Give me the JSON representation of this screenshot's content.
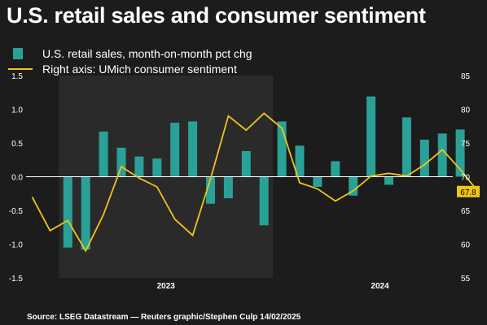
{
  "chart_data": {
    "type": "bar+line",
    "title": "U.S. retail sales and consumer sentiment",
    "source": "Source: LSEG Datastream — Reuters graphic/Stephen Culp 14/02/2025",
    "x_labels": [
      "2023",
      "2024"
    ],
    "left_axis": {
      "ylim": [
        -1.5,
        1.5
      ],
      "ticks": [
        "1.5",
        "1.0",
        "0.5",
        "0.0",
        "-0.5",
        "-1.0",
        "-1.5"
      ]
    },
    "right_axis": {
      "ylim": [
        55,
        85
      ],
      "ticks": [
        "85",
        "80",
        "75",
        "70",
        "65",
        "60",
        "55"
      ]
    },
    "months": [
      "2022-11",
      "2022-12",
      "2023-01",
      "2023-02",
      "2023-03",
      "2023-04",
      "2023-05",
      "2023-06",
      "2023-07",
      "2023-08",
      "2023-09",
      "2023-10",
      "2023-11",
      "2023-12",
      "2024-01",
      "2024-02",
      "2024-03",
      "2024-04",
      "2024-05",
      "2024-06",
      "2024-07",
      "2024-08",
      "2024-09",
      "2024-10",
      "2024-11",
      "2024-12",
      "2025-01"
    ],
    "series": [
      {
        "name": "U.S. retail sales, month-on-month pct chg",
        "type": "bar",
        "axis": "left",
        "color": "#2aa198",
        "values": [
          -1.05,
          -1.08,
          0.67,
          0.43,
          0.3,
          0.27,
          0.8,
          0.82,
          -0.4,
          -0.32,
          0.38,
          -0.72,
          0.82,
          0.46,
          -0.15,
          0.23,
          -0.28,
          1.19,
          -0.12,
          0.88,
          0.55,
          0.64,
          0.7,
          -0.89
        ],
        "bar_months": [
          "2023-01",
          "2023-02",
          "2023-03",
          "2023-04",
          "2023-05",
          "2023-06",
          "2023-07",
          "2023-08",
          "2023-09",
          "2023-10",
          "2023-11",
          "2023-12",
          "2024-01",
          "2024-02",
          "2024-03",
          "2024-04",
          "2024-05",
          "2024-06",
          "2024-07",
          "2024-08",
          "2024-09",
          "2024-10",
          "2024-11",
          "2025-01"
        ]
      },
      {
        "name": "Right axis: UMich consumer sentiment",
        "type": "line",
        "axis": "right",
        "color": "#f0c419",
        "values": [
          67.0,
          62.0,
          63.5,
          59.0,
          64.4,
          71.5,
          69.8,
          68.5,
          63.7,
          61.3,
          69.7,
          79.0,
          76.9,
          79.4,
          77.2,
          69.1,
          68.2,
          66.4,
          67.9,
          70.1,
          70.5,
          70.1,
          71.8,
          74.0,
          71.1,
          67.8
        ],
        "last_label": "67.8"
      }
    ],
    "shaded_bands": [
      "2023",
      "2025"
    ],
    "colors": {
      "background": "#1c1c1c",
      "band": "#2a2a2a",
      "zero_line": "#ffffff",
      "label_bg": "#f0c419"
    }
  }
}
